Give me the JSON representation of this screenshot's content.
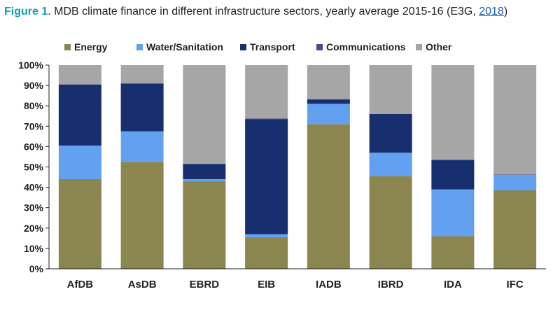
{
  "caption": {
    "figure_label": "Figure 1",
    "text": ". MDB climate finance in different infrastructure sectors, yearly average 2015-16 (E3G, ",
    "link_text": "2018",
    "close": ")"
  },
  "chart_data": {
    "type": "bar",
    "stacked": true,
    "categories": [
      "AfDB",
      "AsDB",
      "EBRD",
      "EIB",
      "IADB",
      "IBRD",
      "IDA",
      "IFC"
    ],
    "series": [
      {
        "name": "Energy",
        "color": "#8b8550",
        "values": [
          44,
          52.5,
          43,
          15.5,
          71,
          45.5,
          16,
          38.5
        ]
      },
      {
        "name": "Water/Sanitation",
        "color": "#62a1f0",
        "values": [
          16.5,
          15,
          1,
          1.5,
          10,
          11.5,
          23,
          7.5
        ]
      },
      {
        "name": "Transport",
        "color": "#172f6e",
        "values": [
          30,
          23.5,
          7.5,
          56.5,
          2,
          19,
          14.5,
          0
        ]
      },
      {
        "name": "Communications",
        "color": "#454c8f",
        "values": [
          0,
          0,
          0,
          0.3,
          0.3,
          0,
          0,
          0.3
        ]
      },
      {
        "name": "Other",
        "color": "#a6a6a6",
        "values": [
          9.5,
          9,
          48.5,
          26.2,
          16.7,
          24,
          46.5,
          53.7
        ]
      }
    ],
    "ylim": [
      0,
      100
    ],
    "yticks": [
      "0%",
      "10%",
      "20%",
      "30%",
      "40%",
      "50%",
      "60%",
      "70%",
      "80%",
      "90%",
      "100%"
    ],
    "xlabel": "",
    "ylabel": "",
    "grid": false,
    "legend_position": "top"
  }
}
